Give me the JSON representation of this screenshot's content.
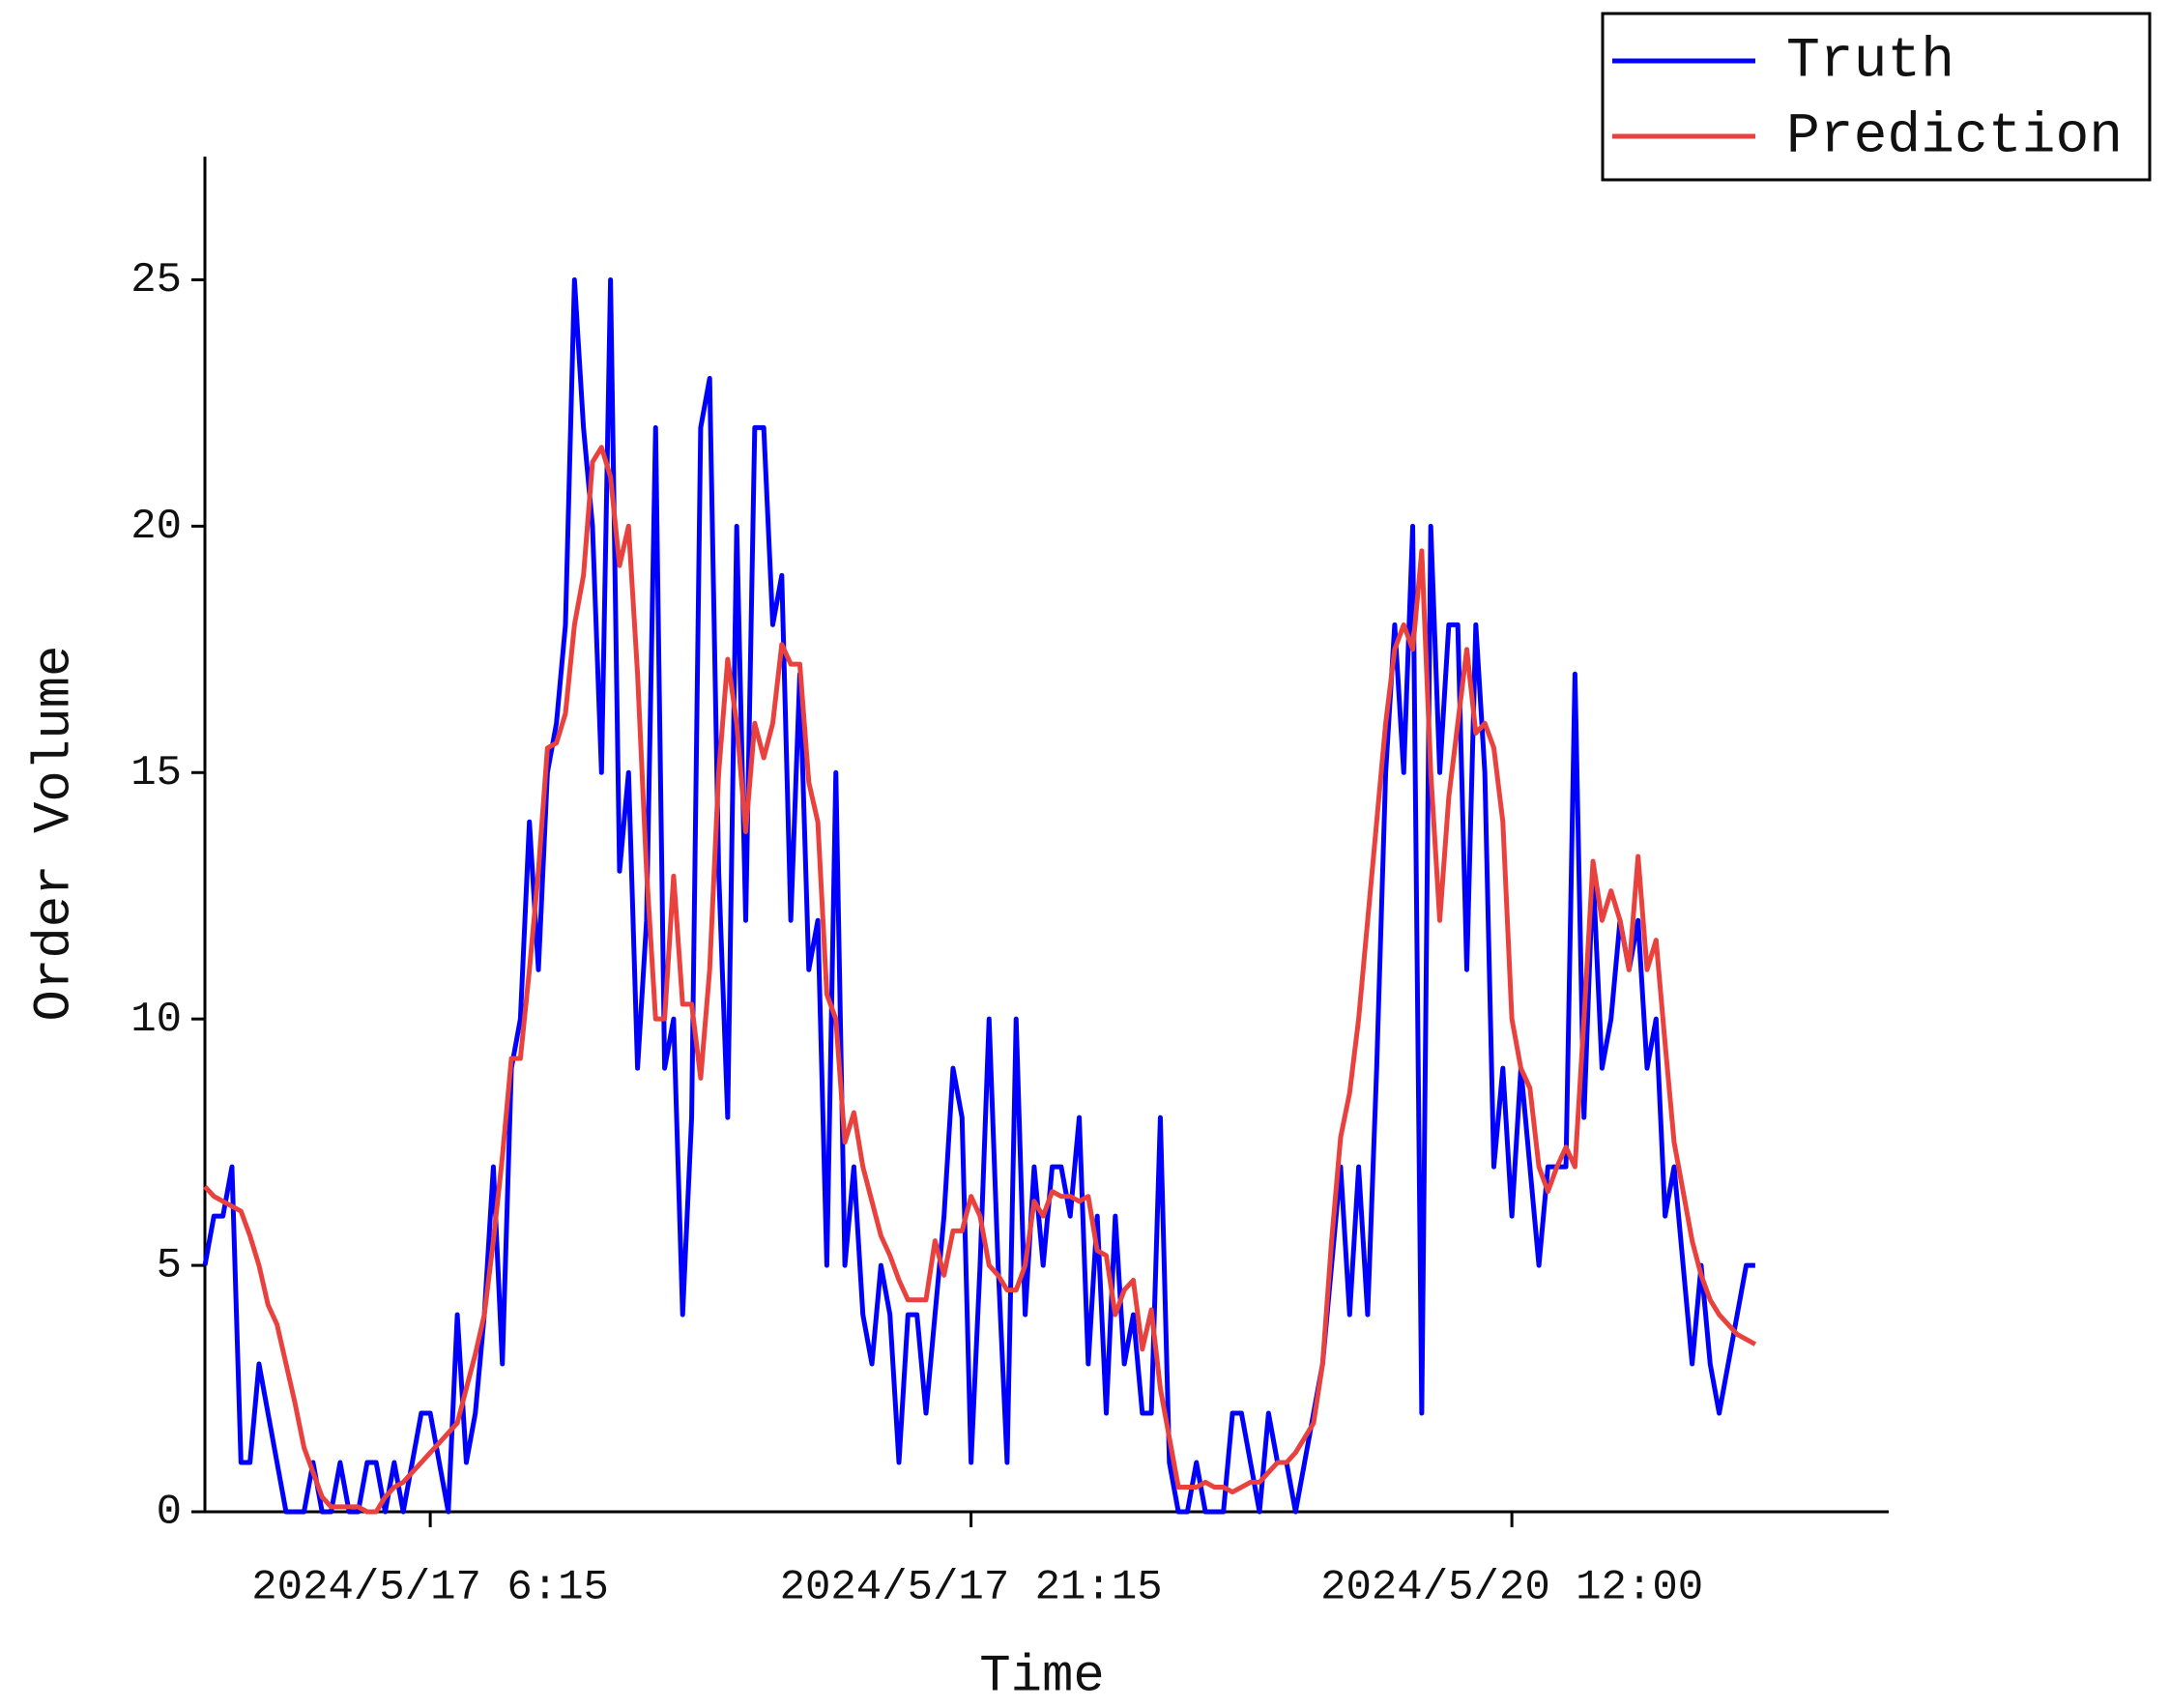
{
  "chart_data": {
    "type": "line",
    "x_label": "Time",
    "y_label": "Order Volume",
    "categories": [
      null,
      null,
      null,
      null,
      null,
      null,
      null,
      null,
      null,
      null,
      null,
      null,
      null,
      null,
      null,
      null,
      null,
      null,
      null,
      null,
      null,
      null,
      null,
      null,
      null,
      "2024/5/17 6:15",
      null,
      null,
      null,
      null,
      null,
      null,
      null,
      null,
      null,
      null,
      null,
      null,
      null,
      null,
      null,
      null,
      null,
      null,
      null,
      null,
      null,
      null,
      null,
      null,
      null,
      null,
      null,
      null,
      null,
      null,
      null,
      null,
      null,
      null,
      null,
      null,
      null,
      null,
      null,
      null,
      null,
      null,
      null,
      null,
      null,
      null,
      null,
      null,
      null,
      null,
      null,
      null,
      null,
      null,
      null,
      null,
      null,
      null,
      null,
      "2024/5/17 21:15",
      null,
      null,
      null,
      null,
      null,
      null,
      null,
      null,
      null,
      null,
      null,
      null,
      null,
      null,
      null,
      null,
      null,
      null,
      null,
      null,
      null,
      null,
      null,
      null,
      null,
      null,
      null,
      null,
      null,
      null,
      null,
      null,
      null,
      null,
      null,
      null,
      null,
      null,
      null,
      null,
      null,
      null,
      null,
      null,
      null,
      null,
      null,
      null,
      null,
      null,
      null,
      null,
      null,
      null,
      null,
      null,
      null,
      null,
      null,
      "2024/5/20 12:00",
      null,
      null,
      null,
      null,
      null,
      null,
      null,
      null,
      null,
      null,
      null,
      null,
      null,
      null,
      null,
      null,
      null,
      null,
      null,
      null,
      null,
      null,
      null,
      null,
      null,
      null,
      null
    ],
    "series": [
      {
        "name": "Truth",
        "color": "#0000ff",
        "values": [
          5,
          6,
          6,
          7,
          1,
          1,
          3,
          2,
          1,
          0,
          0,
          0,
          1,
          0,
          0,
          1,
          0,
          0,
          1,
          1,
          0,
          1,
          0,
          1,
          2,
          2,
          1,
          0,
          4,
          1,
          2,
          4,
          7,
          3,
          9,
          10,
          14,
          11,
          15,
          16,
          18,
          25,
          22,
          20,
          15,
          25,
          13,
          15,
          9,
          12,
          22,
          9,
          10,
          4,
          8,
          22,
          23,
          13,
          8,
          20,
          12,
          22,
          22,
          18,
          19,
          12,
          17,
          11,
          12,
          5,
          15,
          5,
          7,
          4,
          3,
          5,
          4,
          1,
          4,
          4,
          2,
          4,
          6,
          9,
          8,
          1,
          5,
          10,
          5,
          1,
          10,
          4,
          7,
          5,
          7,
          7,
          6,
          8,
          3,
          6,
          2,
          6,
          3,
          4,
          2,
          2,
          8,
          1,
          0,
          0,
          1,
          0,
          0,
          0,
          2,
          2,
          1,
          0,
          2,
          1,
          1,
          0,
          1,
          2,
          3,
          5,
          7,
          4,
          7,
          4,
          9,
          15,
          18,
          15,
          20,
          2,
          20,
          15,
          18,
          18,
          11,
          18,
          15,
          7,
          9,
          6,
          9,
          7,
          5,
          7,
          7,
          7,
          17,
          8,
          13,
          9,
          10,
          12,
          11,
          12,
          9,
          10,
          6,
          7,
          5,
          3,
          5,
          3,
          2,
          3,
          4,
          5,
          5
        ]
      },
      {
        "name": "Prediction",
        "color": "#e8413e",
        "values": [
          6.6,
          6.4,
          6.3,
          6.2,
          6.1,
          5.6,
          5.0,
          4.2,
          3.8,
          3.0,
          2.2,
          1.3,
          0.8,
          0.3,
          0.1,
          0.1,
          0.1,
          0.1,
          0,
          0,
          0.3,
          0.5,
          0.6,
          0.8,
          1.0,
          1.2,
          1.4,
          1.6,
          1.8,
          2.5,
          3.2,
          4.0,
          5.5,
          7.2,
          9.2,
          9.2,
          11,
          13,
          15.5,
          15.6,
          16.2,
          18,
          19,
          21.3,
          21.6,
          21,
          19.2,
          20,
          17,
          13,
          10,
          10,
          12.9,
          10.3,
          10.3,
          8.8,
          11,
          15,
          17.3,
          16,
          13.8,
          16,
          15.3,
          16,
          17.6,
          17.2,
          17.2,
          14.8,
          14,
          10.5,
          10,
          7.5,
          8.1,
          7,
          6.3,
          5.6,
          5.2,
          4.7,
          4.3,
          4.3,
          4.3,
          5.5,
          4.8,
          5.7,
          5.7,
          6.4,
          6,
          5,
          4.8,
          4.5,
          4.5,
          5,
          6.3,
          6,
          6.5,
          6.4,
          6.4,
          6.3,
          6.4,
          5.3,
          5.2,
          4,
          4.5,
          4.7,
          3.3,
          4.1,
          2.5,
          1.5,
          0.5,
          0.5,
          0.5,
          0.6,
          0.5,
          0.5,
          0.4,
          0.5,
          0.6,
          0.6,
          0.8,
          1,
          1,
          1.2,
          1.5,
          1.8,
          3,
          5.5,
          7.6,
          8.5,
          10,
          12,
          14,
          16,
          17.5,
          18,
          17.5,
          19.5,
          15,
          12,
          14.5,
          16,
          17.5,
          15.8,
          16,
          15.5,
          14,
          10,
          9,
          8.6,
          7,
          6.5,
          7,
          7.4,
          7,
          10,
          13.2,
          12,
          12.6,
          12,
          11,
          13.3,
          11,
          11.6,
          9.5,
          7.5,
          6.5,
          5.5,
          4.8,
          4.3,
          4,
          3.8,
          3.6,
          3.5,
          3.4
        ]
      }
    ],
    "ylim": [
      0,
      27.5
    ],
    "yticks": [
      0,
      5,
      10,
      15,
      20,
      25
    ],
    "grid": false,
    "legend": "upper right"
  }
}
